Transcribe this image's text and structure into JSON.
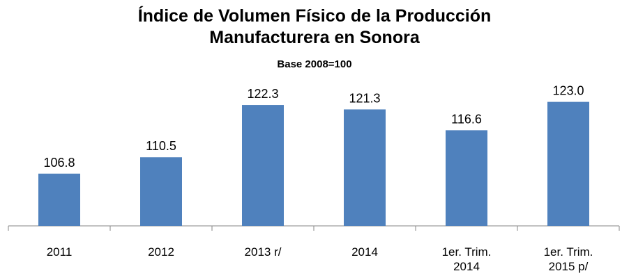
{
  "chart_data": {
    "type": "bar",
    "title": "Índice de Volumen Físico de la Producción Manufacturera en Sonora",
    "subtitle": "Base 2008=100",
    "categories": [
      "2011",
      "2012",
      "2013 r/",
      "2014",
      "1er. Trim. 2014",
      "1er. Trim. 2015 p/"
    ],
    "values": [
      106.8,
      110.5,
      122.3,
      121.3,
      116.6,
      123.0
    ],
    "value_labels": [
      "106.8",
      "110.5",
      "122.3",
      "121.3",
      "116.6",
      "123.0"
    ],
    "color": "#4f81bd",
    "ylim": [
      95,
      130
    ]
  }
}
